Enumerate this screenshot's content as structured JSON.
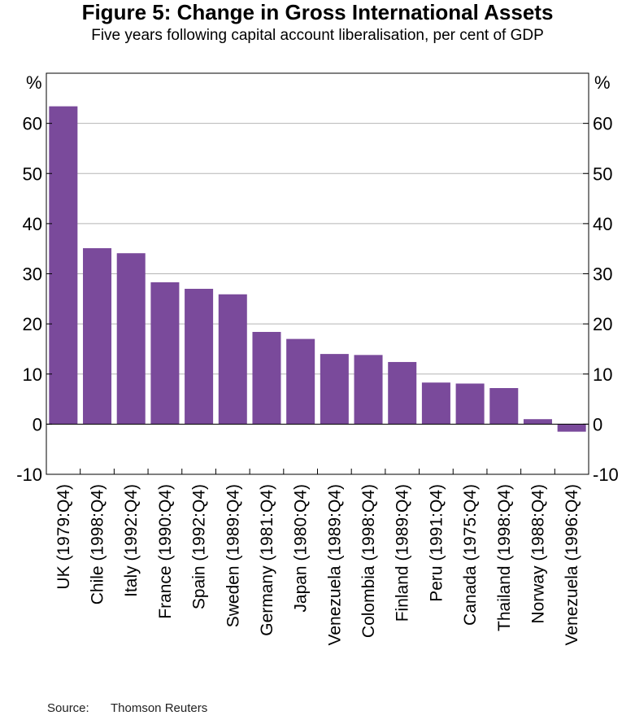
{
  "chart_data": {
    "type": "bar",
    "title": "Figure 5: Change in Gross International Assets",
    "subtitle": "Five years following capital account liberalisation, per cent of GDP",
    "ylabel_left": "%",
    "ylabel_right": "%",
    "ylim": [
      -10,
      70
    ],
    "yticks": [
      -10,
      0,
      10,
      20,
      30,
      40,
      50,
      60
    ],
    "grid": true,
    "categories": [
      "UK (1979:Q4)",
      "Chile (1998:Q4)",
      "Italy (1992:Q4)",
      "France (1990:Q4)",
      "Spain (1992:Q4)",
      "Sweden (1989:Q4)",
      "Germany (1981:Q4)",
      "Japan (1980:Q4)",
      "Venezuela (1989:Q4)",
      "Colombia (1998:Q4)",
      "Finland (1989:Q4)",
      "Peru (1991:Q4)",
      "Canada (1975:Q4)",
      "Thailand (1998:Q4)",
      "Norway (1988:Q4)",
      "Venezuela (1996:Q4)"
    ],
    "values": [
      63.4,
      35.1,
      34.1,
      28.3,
      27.0,
      25.9,
      18.4,
      17.0,
      14.0,
      13.8,
      12.4,
      8.3,
      8.1,
      7.2,
      1.0,
      -1.5
    ],
    "bar_color": "#7a4a9b"
  },
  "source": {
    "label": "Source:",
    "text": "Thomson Reuters"
  }
}
